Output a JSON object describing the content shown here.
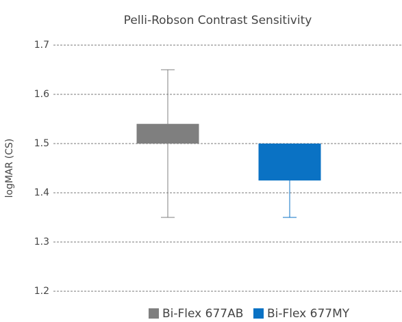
{
  "chart_data": {
    "type": "bar",
    "title": "Pelli-Robson Contrast Sensitivity",
    "y_label": "logMAR (CS)",
    "bar_base": 1.5,
    "series": [
      {
        "name": "Bi-Flex 677AB",
        "color": "#7f7f7f",
        "values": [
          1.54
        ],
        "error_low": [
          1.35
        ],
        "error_high": [
          1.65
        ]
      },
      {
        "name": "Bi-Flex 677MY",
        "color": "#0a72c4",
        "values": [
          1.425
        ],
        "error_low": [
          1.35
        ],
        "error_high": [
          null
        ]
      }
    ],
    "ylim": [
      1.2,
      1.7
    ],
    "yticks": [
      1.2,
      1.3,
      1.4,
      1.5,
      1.6,
      1.7
    ],
    "grid": true,
    "legend": "bottom"
  }
}
